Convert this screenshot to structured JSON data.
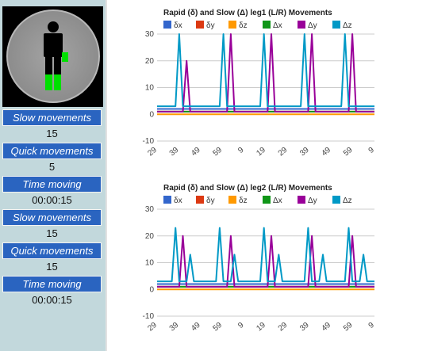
{
  "sidebar": {
    "stats": [
      {
        "label": "Slow movements",
        "value": "15"
      },
      {
        "label": "Quick movements",
        "value": "5"
      },
      {
        "label": "Time moving",
        "value": "00:00:15"
      },
      {
        "label": "Slow movements",
        "value": "15"
      },
      {
        "label": "Quick movements",
        "value": "15"
      },
      {
        "label": "Time moving",
        "value": "00:00:15"
      }
    ],
    "colors": {
      "label_bg": "#2a64c0",
      "panel_bg": "#c2d8dc",
      "active_limb": "#00e000"
    }
  },
  "chart_data": [
    {
      "type": "line",
      "title": "Rapid (δ) and Slow (Δ) leg1 (L/R) Movements",
      "legend_position": "top",
      "grid": true,
      "ylim": [
        -10,
        30
      ],
      "y_ticks": [
        "30",
        "20",
        "10",
        "0",
        "-10"
      ],
      "x_ticks": [
        "29",
        "39",
        "49",
        "59",
        "9",
        "19",
        "29",
        "39",
        "49",
        "59",
        "9"
      ],
      "series": [
        {
          "name": "δx",
          "color": "#3366cc",
          "values": [
            2,
            2,
            2,
            2,
            2,
            2,
            2,
            2,
            2,
            2,
            2,
            2,
            2,
            2,
            2,
            2,
            2,
            2,
            2,
            2,
            2,
            2,
            2,
            2,
            2,
            2,
            2,
            2,
            2,
            2,
            2,
            2,
            2,
            2,
            2,
            2,
            2,
            2,
            2,
            2,
            2,
            2,
            2,
            2,
            2,
            2,
            2,
            2,
            2,
            2,
            2,
            2,
            2,
            2,
            2,
            2,
            2,
            2,
            2,
            2
          ]
        },
        {
          "name": "δy",
          "color": "#dc3912",
          "values": [
            1,
            1,
            1,
            1,
            1,
            1,
            1,
            1,
            1,
            1,
            1,
            1,
            1,
            1,
            1,
            1,
            1,
            1,
            1,
            1,
            1,
            1,
            1,
            1,
            1,
            1,
            1,
            1,
            1,
            1,
            1,
            1,
            1,
            1,
            1,
            1,
            1,
            1,
            1,
            1,
            1,
            1,
            1,
            1,
            1,
            1,
            1,
            1,
            1,
            1,
            1,
            1,
            1,
            1,
            1,
            1,
            1,
            1,
            1,
            1
          ]
        },
        {
          "name": "δz",
          "color": "#ff9900",
          "values": [
            0,
            0,
            0,
            0,
            0,
            0,
            0,
            0,
            0,
            0,
            0,
            0,
            0,
            0,
            0,
            0,
            0,
            0,
            0,
            0,
            0,
            0,
            0,
            0,
            0,
            0,
            0,
            0,
            0,
            0,
            0,
            0,
            0,
            0,
            0,
            0,
            0,
            0,
            0,
            0,
            0,
            0,
            0,
            0,
            0,
            0,
            0,
            0,
            0,
            0,
            0,
            0,
            0,
            0,
            0,
            0,
            0,
            0,
            0,
            0
          ]
        },
        {
          "name": "Δx",
          "color": "#109618",
          "values": [
            1,
            1,
            1,
            1,
            1,
            1,
            1,
            1,
            1,
            1,
            1,
            1,
            1,
            1,
            1,
            1,
            1,
            1,
            1,
            1,
            1,
            1,
            1,
            1,
            1,
            1,
            1,
            1,
            1,
            1,
            1,
            1,
            1,
            1,
            1,
            1,
            1,
            1,
            1,
            1,
            1,
            1,
            1,
            1,
            1,
            1,
            1,
            1,
            1,
            1,
            1,
            1,
            1,
            1,
            1,
            1,
            1,
            1,
            1,
            1
          ]
        },
        {
          "name": "Δy",
          "color": "#990099",
          "values": [
            1,
            1,
            1,
            1,
            1,
            1,
            1,
            1,
            20,
            1,
            1,
            1,
            1,
            1,
            1,
            1,
            1,
            1,
            1,
            1,
            30,
            1,
            1,
            1,
            1,
            1,
            1,
            1,
            1,
            1,
            1,
            30,
            1,
            1,
            1,
            1,
            1,
            1,
            1,
            1,
            1,
            1,
            30,
            1,
            1,
            1,
            1,
            1,
            1,
            1,
            1,
            1,
            1,
            30,
            1,
            1,
            1,
            1,
            1,
            1
          ]
        },
        {
          "name": "Δz",
          "color": "#0099c6",
          "values": [
            3,
            3,
            3,
            3,
            3,
            3,
            30,
            3,
            3,
            3,
            3,
            3,
            3,
            3,
            3,
            3,
            3,
            3,
            30,
            3,
            3,
            3,
            3,
            3,
            3,
            3,
            3,
            3,
            3,
            30,
            3,
            3,
            3,
            3,
            3,
            3,
            3,
            3,
            3,
            3,
            30,
            3,
            3,
            3,
            3,
            3,
            3,
            3,
            3,
            3,
            3,
            30,
            3,
            3,
            3,
            3,
            3,
            3,
            3,
            3
          ]
        }
      ]
    },
    {
      "type": "line",
      "title": "Rapid (δ) and Slow (Δ) leg2 (L/R) Movements",
      "legend_position": "top",
      "grid": true,
      "ylim": [
        -10,
        30
      ],
      "y_ticks": [
        "30",
        "20",
        "10",
        "0",
        "-10"
      ],
      "x_ticks": [
        "29",
        "39",
        "49",
        "59",
        "9",
        "19",
        "29",
        "39",
        "49",
        "59",
        "9"
      ],
      "series": [
        {
          "name": "δx",
          "color": "#3366cc",
          "values": [
            2,
            2,
            2,
            2,
            2,
            2,
            2,
            2,
            2,
            2,
            2,
            2,
            2,
            2,
            2,
            2,
            2,
            2,
            2,
            2,
            2,
            2,
            2,
            2,
            2,
            2,
            2,
            2,
            2,
            2,
            2,
            2,
            2,
            2,
            2,
            2,
            2,
            2,
            2,
            2,
            2,
            2,
            2,
            2,
            2,
            2,
            2,
            2,
            2,
            2,
            2,
            2,
            2,
            2,
            2,
            2,
            2,
            2,
            2,
            2
          ]
        },
        {
          "name": "δy",
          "color": "#dc3912",
          "values": [
            1,
            1,
            1,
            1,
            1,
            1,
            1,
            1,
            1,
            1,
            1,
            1,
            1,
            1,
            1,
            1,
            1,
            1,
            1,
            1,
            1,
            1,
            1,
            1,
            1,
            1,
            1,
            1,
            1,
            1,
            1,
            1,
            1,
            1,
            1,
            1,
            1,
            1,
            1,
            1,
            1,
            1,
            1,
            1,
            1,
            1,
            1,
            1,
            1,
            1,
            1,
            1,
            1,
            1,
            1,
            1,
            1,
            1,
            1,
            1
          ]
        },
        {
          "name": "δz",
          "color": "#ff9900",
          "values": [
            0,
            0,
            0,
            0,
            0,
            0,
            0,
            0,
            0,
            0,
            0,
            0,
            0,
            0,
            0,
            0,
            0,
            0,
            0,
            0,
            0,
            0,
            0,
            0,
            0,
            0,
            0,
            0,
            0,
            0,
            0,
            0,
            0,
            0,
            0,
            0,
            0,
            0,
            0,
            0,
            0,
            0,
            0,
            0,
            0,
            0,
            0,
            0,
            0,
            0,
            0,
            0,
            0,
            0,
            0,
            0,
            0,
            0,
            0,
            0
          ]
        },
        {
          "name": "Δx",
          "color": "#109618",
          "values": [
            1,
            1,
            1,
            1,
            1,
            1,
            1,
            1,
            1,
            1,
            1,
            1,
            1,
            1,
            1,
            1,
            1,
            1,
            1,
            1,
            1,
            1,
            1,
            1,
            1,
            1,
            1,
            1,
            1,
            1,
            1,
            1,
            1,
            1,
            1,
            1,
            1,
            1,
            1,
            1,
            1,
            1,
            1,
            1,
            1,
            1,
            1,
            1,
            1,
            1,
            1,
            1,
            1,
            1,
            1,
            1,
            1,
            1,
            1,
            1
          ]
        },
        {
          "name": "Δy",
          "color": "#990099",
          "values": [
            1,
            1,
            1,
            1,
            1,
            1,
            1,
            20,
            1,
            1,
            1,
            1,
            1,
            1,
            1,
            1,
            1,
            1,
            1,
            1,
            20,
            1,
            1,
            1,
            1,
            1,
            1,
            1,
            1,
            1,
            1,
            20,
            1,
            1,
            1,
            1,
            1,
            1,
            1,
            1,
            1,
            1,
            20,
            1,
            1,
            1,
            1,
            1,
            1,
            1,
            1,
            1,
            1,
            20,
            1,
            1,
            1,
            1,
            1,
            1
          ]
        },
        {
          "name": "Δz",
          "color": "#0099c6",
          "values": [
            3,
            3,
            3,
            3,
            3,
            23,
            3,
            3,
            3,
            13,
            3,
            3,
            3,
            3,
            3,
            3,
            3,
            23,
            3,
            3,
            3,
            13,
            3,
            3,
            3,
            3,
            3,
            3,
            3,
            23,
            3,
            3,
            3,
            13,
            3,
            3,
            3,
            3,
            3,
            3,
            3,
            23,
            3,
            3,
            3,
            13,
            3,
            3,
            3,
            3,
            3,
            3,
            23,
            3,
            3,
            3,
            13,
            3,
            3,
            3
          ]
        }
      ]
    }
  ]
}
